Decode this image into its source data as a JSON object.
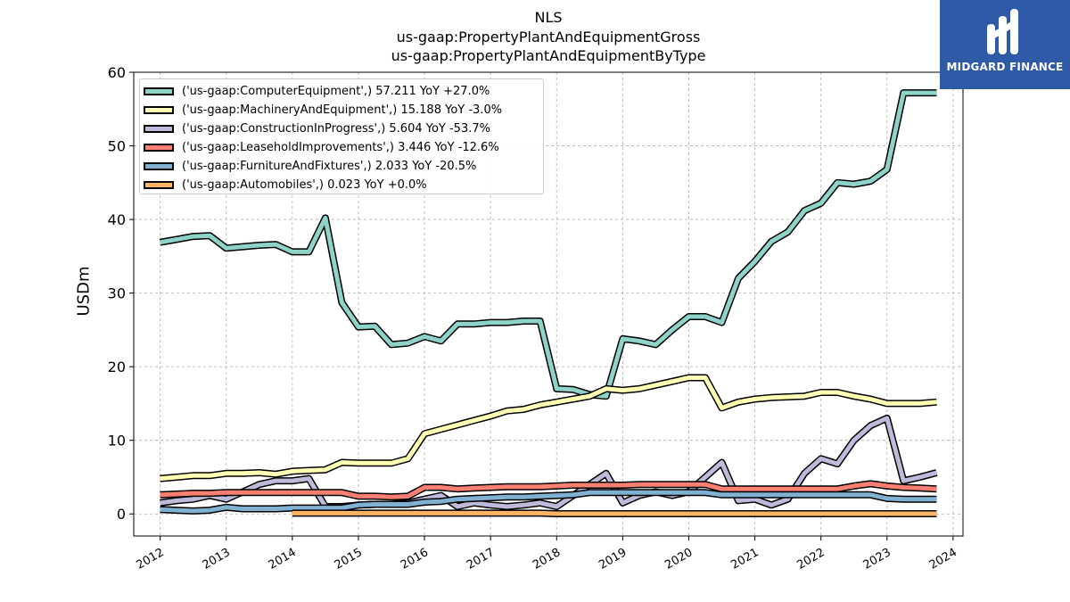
{
  "chart_data": {
    "type": "line",
    "title_lines": [
      "NLS",
      "us-gaap:PropertyPlantAndEquipmentGross",
      "us-gaap:PropertyPlantAndEquipmentByType"
    ],
    "ylabel": "USDm",
    "xlabel": "",
    "xlim": [
      2011.6,
      2024.15
    ],
    "ylim": [
      -3,
      60
    ],
    "yticks": [
      0,
      10,
      20,
      30,
      40,
      50,
      60
    ],
    "xticks": [
      2012,
      2013,
      2014,
      2015,
      2016,
      2017,
      2018,
      2019,
      2020,
      2021,
      2022,
      2023,
      2024
    ],
    "grid": true,
    "legend_position": "top-left",
    "series": [
      {
        "name": "('us-gaap:ComputerEquipment',) 57.211 YoY +27.0%",
        "color": "#8dd3c7",
        "x": [
          2012.0,
          2012.25,
          2012.5,
          2012.75,
          2013.0,
          2013.25,
          2013.5,
          2013.75,
          2014.0,
          2014.25,
          2014.5,
          2014.75,
          2015.0,
          2015.25,
          2015.5,
          2015.75,
          2016.0,
          2016.25,
          2016.5,
          2016.75,
          2017.0,
          2017.25,
          2017.5,
          2017.75,
          2018.0,
          2018.25,
          2018.5,
          2018.75,
          2019.0,
          2019.25,
          2019.5,
          2019.75,
          2020.0,
          2020.25,
          2020.5,
          2020.75,
          2021.0,
          2021.25,
          2021.5,
          2021.75,
          2022.0,
          2022.25,
          2022.5,
          2022.75,
          2023.0,
          2023.25,
          2023.5,
          2023.75
        ],
        "y": [
          36.9,
          37.3,
          37.7,
          37.8,
          36.1,
          36.3,
          36.5,
          36.6,
          35.6,
          35.6,
          40.2,
          28.7,
          25.4,
          25.5,
          23.0,
          23.2,
          24.1,
          23.5,
          25.8,
          25.8,
          26.0,
          26.0,
          26.2,
          26.2,
          17.0,
          16.9,
          16.2,
          16.0,
          23.8,
          23.5,
          23.0,
          25.0,
          26.8,
          26.8,
          26.0,
          32.0,
          34.3,
          37.0,
          38.3,
          41.2,
          42.2,
          45.0,
          44.8,
          45.2,
          46.8,
          57.2,
          57.2,
          57.2
        ]
      },
      {
        "name": "('us-gaap:MachineryAndEquipment',) 15.188 YoY -3.0%",
        "color": "#ffffb3",
        "x": [
          2012.0,
          2012.25,
          2012.5,
          2012.75,
          2013.0,
          2013.25,
          2013.5,
          2013.75,
          2014.0,
          2014.25,
          2014.5,
          2014.75,
          2015.0,
          2015.25,
          2015.5,
          2015.75,
          2016.0,
          2016.25,
          2016.5,
          2016.75,
          2017.0,
          2017.25,
          2017.5,
          2017.75,
          2018.0,
          2018.25,
          2018.5,
          2018.75,
          2019.0,
          2019.25,
          2019.5,
          2019.75,
          2020.0,
          2020.25,
          2020.5,
          2020.75,
          2021.0,
          2021.25,
          2021.5,
          2021.75,
          2022.0,
          2022.25,
          2022.5,
          2022.75,
          2023.0,
          2023.25,
          2023.5,
          2023.75
        ],
        "y": [
          4.8,
          5.0,
          5.2,
          5.2,
          5.5,
          5.5,
          5.6,
          5.4,
          5.8,
          5.9,
          6.0,
          7.0,
          6.9,
          6.9,
          6.9,
          7.5,
          10.9,
          11.5,
          12.1,
          12.7,
          13.3,
          14.0,
          14.2,
          14.8,
          15.2,
          15.6,
          16.0,
          17.0,
          16.8,
          17.0,
          17.5,
          18.0,
          18.5,
          18.5,
          14.4,
          15.2,
          15.6,
          15.8,
          15.9,
          16.0,
          16.5,
          16.5,
          16.0,
          15.6,
          15.0,
          15.0,
          15.0,
          15.2
        ]
      },
      {
        "name": "('us-gaap:ConstructionInProgress',) 5.604 YoY -53.7%",
        "color": "#bebada",
        "x": [
          2012.0,
          2012.25,
          2012.5,
          2012.75,
          2013.0,
          2013.25,
          2013.5,
          2013.75,
          2014.0,
          2014.25,
          2014.5,
          2014.75,
          2015.0,
          2015.25,
          2015.5,
          2015.75,
          2016.0,
          2016.25,
          2016.5,
          2016.75,
          2017.0,
          2017.25,
          2017.5,
          2017.75,
          2018.0,
          2018.25,
          2018.5,
          2018.75,
          2019.0,
          2019.25,
          2019.5,
          2019.75,
          2020.0,
          2020.25,
          2020.5,
          2020.75,
          2021.0,
          2021.25,
          2021.5,
          2021.75,
          2022.0,
          2022.25,
          2022.5,
          2022.75,
          2023.0,
          2023.25,
          2023.5,
          2023.75
        ],
        "y": [
          1.5,
          1.8,
          2.0,
          2.5,
          2.0,
          3.0,
          4.0,
          4.5,
          4.5,
          4.8,
          1.0,
          1.0,
          1.2,
          1.3,
          1.3,
          1.5,
          2.0,
          2.5,
          1.0,
          1.5,
          1.2,
          1.0,
          1.2,
          1.5,
          1.0,
          2.5,
          4.0,
          5.5,
          1.5,
          2.5,
          3.0,
          2.5,
          3.0,
          5.0,
          7.0,
          1.8,
          2.0,
          1.2,
          2.0,
          5.5,
          7.5,
          6.8,
          10.0,
          12.0,
          13.0,
          4.5,
          5.0,
          5.6
        ]
      },
      {
        "name": "('us-gaap:LeaseholdImprovements',) 3.446 YoY -12.6%",
        "color": "#fb8072",
        "x": [
          2012.0,
          2012.25,
          2012.5,
          2012.75,
          2013.0,
          2013.25,
          2013.5,
          2013.75,
          2014.0,
          2014.25,
          2014.5,
          2014.75,
          2015.0,
          2015.25,
          2015.5,
          2015.75,
          2016.0,
          2016.25,
          2016.5,
          2016.75,
          2017.0,
          2017.25,
          2017.5,
          2017.75,
          2018.0,
          2018.25,
          2018.5,
          2018.75,
          2019.0,
          2019.25,
          2019.5,
          2019.75,
          2020.0,
          2020.25,
          2020.5,
          2020.75,
          2021.0,
          2021.25,
          2021.5,
          2021.75,
          2022.0,
          2022.25,
          2022.5,
          2022.75,
          2023.0,
          2023.25,
          2023.5,
          2023.75
        ],
        "y": [
          2.6,
          2.7,
          2.8,
          2.8,
          2.9,
          2.9,
          2.9,
          2.9,
          2.9,
          2.9,
          2.9,
          2.9,
          2.4,
          2.4,
          2.3,
          2.4,
          3.6,
          3.6,
          3.4,
          3.5,
          3.6,
          3.7,
          3.7,
          3.7,
          3.8,
          3.9,
          3.9,
          3.9,
          3.9,
          4.0,
          4.0,
          4.0,
          4.0,
          4.0,
          3.4,
          3.4,
          3.4,
          3.4,
          3.4,
          3.4,
          3.4,
          3.4,
          3.8,
          4.1,
          3.8,
          3.6,
          3.5,
          3.4
        ]
      },
      {
        "name": "('us-gaap:FurnitureAndFixtures',) 2.033 YoY -20.5%",
        "color": "#80b1d3",
        "x": [
          2012.0,
          2012.25,
          2012.5,
          2012.75,
          2013.0,
          2013.25,
          2013.5,
          2013.75,
          2014.0,
          2014.25,
          2014.5,
          2014.75,
          2015.0,
          2015.25,
          2015.5,
          2015.75,
          2016.0,
          2016.25,
          2016.5,
          2016.75,
          2017.0,
          2017.25,
          2017.5,
          2017.75,
          2018.0,
          2018.25,
          2018.5,
          2018.75,
          2019.0,
          2019.25,
          2019.5,
          2019.75,
          2020.0,
          2020.25,
          2020.5,
          2020.75,
          2021.0,
          2021.25,
          2021.5,
          2021.75,
          2022.0,
          2022.25,
          2022.5,
          2022.75,
          2023.0,
          2023.25,
          2023.5,
          2023.75
        ],
        "y": [
          0.6,
          0.5,
          0.4,
          0.5,
          0.9,
          0.7,
          0.7,
          0.7,
          0.8,
          0.8,
          0.8,
          0.8,
          1.2,
          1.3,
          1.3,
          1.3,
          1.6,
          1.7,
          2.0,
          2.1,
          2.2,
          2.3,
          2.3,
          2.4,
          2.5,
          2.6,
          2.9,
          2.9,
          2.9,
          2.9,
          2.9,
          2.9,
          2.9,
          2.9,
          2.6,
          2.6,
          2.6,
          2.6,
          2.6,
          2.6,
          2.6,
          2.6,
          2.6,
          2.6,
          2.1,
          2.0,
          2.0,
          2.0
        ]
      },
      {
        "name": "('us-gaap:Automobiles',) 0.023 YoY +0.0%",
        "color": "#fdb462",
        "x": [
          2014.0,
          2014.25,
          2014.5,
          2014.75,
          2015.0,
          2015.25,
          2015.5,
          2015.75,
          2016.0,
          2016.25,
          2016.5,
          2016.75,
          2017.0,
          2017.25,
          2017.5,
          2017.75,
          2018.0,
          2018.25,
          2018.5,
          2018.75,
          2019.0,
          2019.25,
          2019.5,
          2019.75,
          2020.0,
          2020.25,
          2020.5,
          2020.75,
          2021.0,
          2021.25,
          2021.5,
          2021.75,
          2022.0,
          2022.25,
          2022.5,
          2022.75,
          2023.0,
          2023.25,
          2023.5,
          2023.75
        ],
        "y": [
          0.1,
          0.1,
          0.1,
          0.1,
          0.1,
          0.1,
          0.1,
          0.1,
          0.1,
          0.1,
          0.1,
          0.1,
          0.1,
          0.1,
          0.1,
          0.1,
          0.03,
          0.03,
          0.03,
          0.03,
          0.03,
          0.03,
          0.03,
          0.03,
          0.03,
          0.03,
          0.03,
          0.03,
          0.03,
          0.03,
          0.03,
          0.03,
          0.03,
          0.03,
          0.03,
          0.03,
          0.023,
          0.023,
          0.023,
          0.023
        ]
      }
    ]
  },
  "logo": {
    "text": "MIDGARD FINANCE",
    "background": "#2f5aa8"
  }
}
